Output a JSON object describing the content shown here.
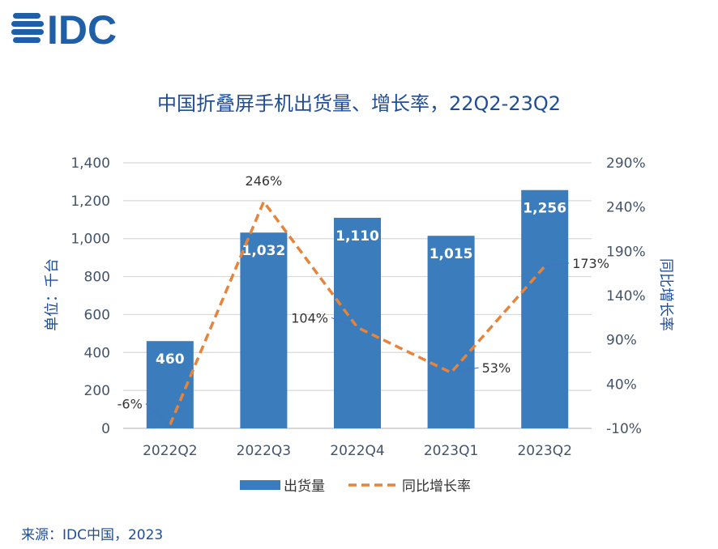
{
  "logo": {
    "text": "IDC"
  },
  "source": "来源：IDC中国，2023",
  "chart_data": {
    "type": "bar+line",
    "title": "中国折叠屏手机出货量、增长率，22Q2-23Q2",
    "categories": [
      "2022Q2",
      "2022Q3",
      "2022Q4",
      "2023Q1",
      "2023Q2"
    ],
    "series": [
      {
        "name": "出货量",
        "type": "bar",
        "axis": "left",
        "values": [
          460,
          1032,
          1110,
          1015,
          1256
        ],
        "labels": [
          "460",
          "1,032",
          "1,110",
          "1,015",
          "1,256"
        ],
        "color": "#3b7cbc"
      },
      {
        "name": "同比增长率",
        "type": "line",
        "style": "dashed",
        "axis": "right",
        "values": [
          -6,
          246,
          104,
          53,
          173
        ],
        "labels": [
          "-6%",
          "246%",
          "104%",
          "53%",
          "173%"
        ],
        "color": "#e6843b"
      }
    ],
    "ylabel": "单位：千台",
    "y2label": "同比增长率",
    "ylim": [
      0,
      1400
    ],
    "yticks": [
      0,
      200,
      400,
      600,
      800,
      1000,
      1200,
      1400
    ],
    "ytick_labels": [
      "0",
      "200",
      "400",
      "600",
      "800",
      "1,000",
      "1,200",
      "1,400"
    ],
    "y2lim": [
      -10,
      290
    ],
    "y2ticks": [
      -10,
      40,
      90,
      140,
      190,
      240,
      290
    ],
    "y2tick_labels": [
      "-10%",
      "40%",
      "90%",
      "140%",
      "190%",
      "240%",
      "290%"
    ],
    "legend": [
      "出货量",
      "同比增长率"
    ],
    "legend_position": "bottom",
    "grid": true
  }
}
